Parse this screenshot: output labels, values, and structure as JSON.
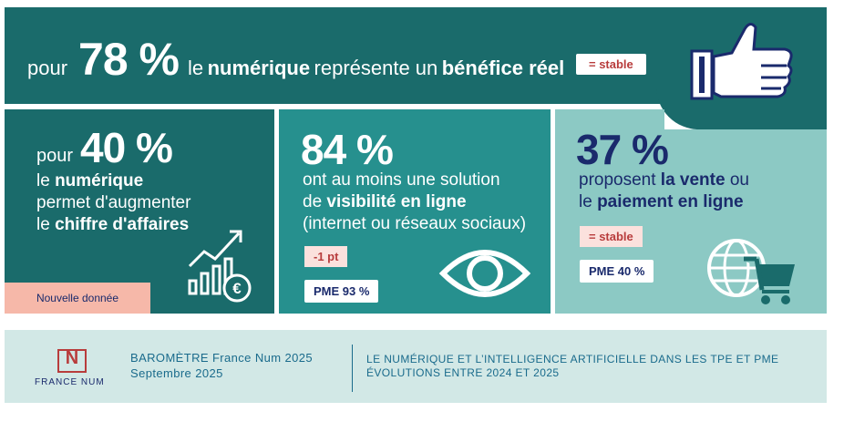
{
  "top": {
    "pre": "pour",
    "percent": "78 %",
    "mid1": "le",
    "bold1": "numérique",
    "mid2": "représente un",
    "bold2": "bénéfice réel",
    "badge": "= stable"
  },
  "panel1": {
    "pre": "pour",
    "percent": "40 %",
    "line1_pre": "le",
    "line1_bold": "numérique",
    "line2": "permet d'augmenter",
    "line3_pre": "le",
    "line3_bold": "chiffre d'affaires",
    "new_label": "Nouvelle donnée"
  },
  "panel2": {
    "percent": "84 %",
    "line1": "ont au moins une solution",
    "line2_pre": "de",
    "line2_bold": "visibilité en ligne",
    "line3": "(internet ou réseaux sociaux)",
    "chip_red": "-1 pt",
    "chip_white": "PME 93 %"
  },
  "panel3": {
    "percent": "37 %",
    "line1_pre": "proposent",
    "line1_bold": "la vente",
    "line1_post": "ou",
    "line2_pre": "le",
    "line2_bold": "paiement en ligne",
    "chip_red": "= stable",
    "chip_white": "PME 40 %"
  },
  "footer": {
    "logo_letter": "N",
    "logo_text": "FRANCE NUM",
    "title": "BAROMÈTRE France Num 2025",
    "date": "Septembre 2025",
    "right1": "LE NUMÉRIQUE ET L’INTELLIGENCE ARTIFICIELLE DANS LES TPE ET PME",
    "right2": "ÉVOLUTIONS ENTRE 2024 ET 2025"
  },
  "colors": {
    "dark_teal": "#1a6b6b",
    "mid_teal": "#26908e",
    "light_teal": "#8cc9c4",
    "accent_red": "#b83c3c",
    "navy": "#1a2a6c",
    "peach": "#f6b8a9"
  }
}
